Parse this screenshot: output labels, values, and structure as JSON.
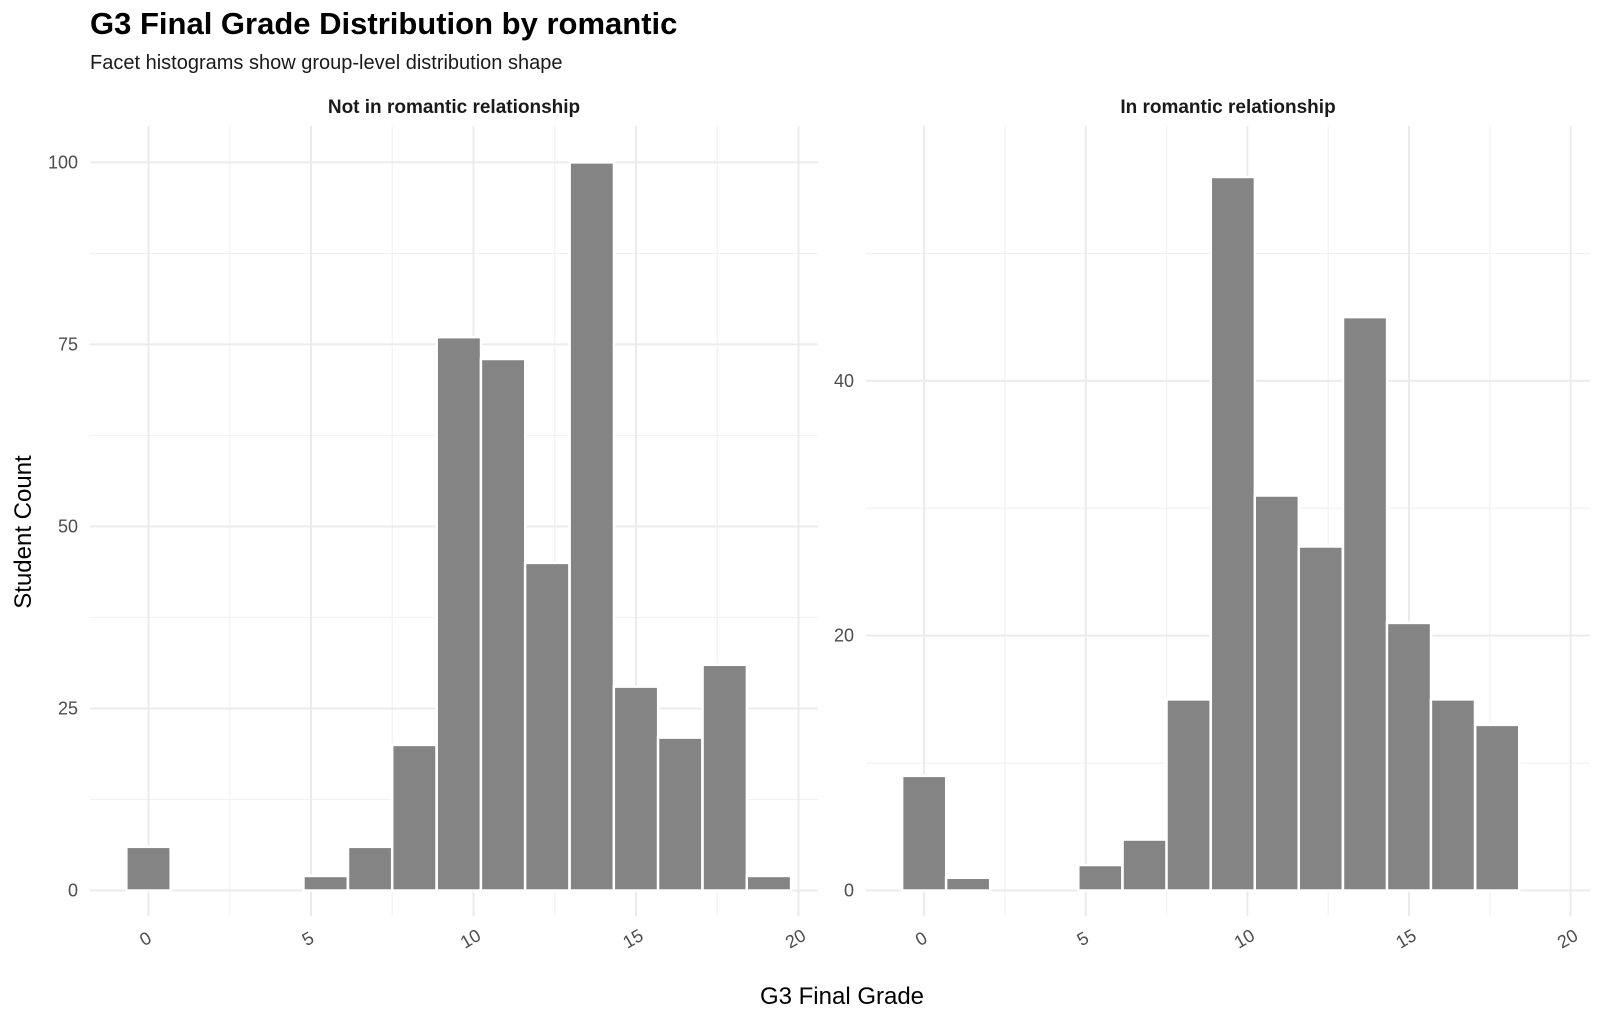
{
  "chart_data": {
    "type": "bar",
    "title": "G3 Final Grade Distribution by romantic",
    "subtitle": "Facet histograms show group-level distribution shape",
    "xlabel": "G3 Final Grade",
    "ylabel": "Student Count",
    "xlim": [
      -1.8,
      20.6
    ],
    "x_ticks": [
      0,
      5,
      10,
      15,
      20
    ],
    "bin_width": 1.364,
    "grid": true,
    "bar_color": "#808080",
    "facets": [
      {
        "name": "Not in romantic relationship",
        "ylim": [
          -3.5,
          105
        ],
        "y_ticks": [
          0,
          25,
          50,
          75,
          100
        ],
        "bins": [
          {
            "x": 0.0,
            "count": 6
          },
          {
            "x": 5.45,
            "count": 2
          },
          {
            "x": 6.82,
            "count": 6
          },
          {
            "x": 8.18,
            "count": 20
          },
          {
            "x": 9.55,
            "count": 76
          },
          {
            "x": 10.91,
            "count": 73
          },
          {
            "x": 12.27,
            "count": 45
          },
          {
            "x": 13.64,
            "count": 100
          },
          {
            "x": 15.0,
            "count": 28
          },
          {
            "x": 16.36,
            "count": 21
          },
          {
            "x": 17.73,
            "count": 31
          },
          {
            "x": 19.09,
            "count": 2
          }
        ]
      },
      {
        "name": "In romantic relationship",
        "ylim": [
          -2,
          60
        ],
        "y_ticks": [
          0,
          20,
          40
        ],
        "bins": [
          {
            "x": 0.0,
            "count": 9
          },
          {
            "x": 1.36,
            "count": 1
          },
          {
            "x": 5.45,
            "count": 2
          },
          {
            "x": 6.82,
            "count": 4
          },
          {
            "x": 8.18,
            "count": 15
          },
          {
            "x": 9.55,
            "count": 56
          },
          {
            "x": 10.91,
            "count": 31
          },
          {
            "x": 12.27,
            "count": 27
          },
          {
            "x": 13.64,
            "count": 45
          },
          {
            "x": 15.0,
            "count": 21
          },
          {
            "x": 16.36,
            "count": 15
          },
          {
            "x": 17.73,
            "count": 13
          }
        ]
      }
    ]
  }
}
